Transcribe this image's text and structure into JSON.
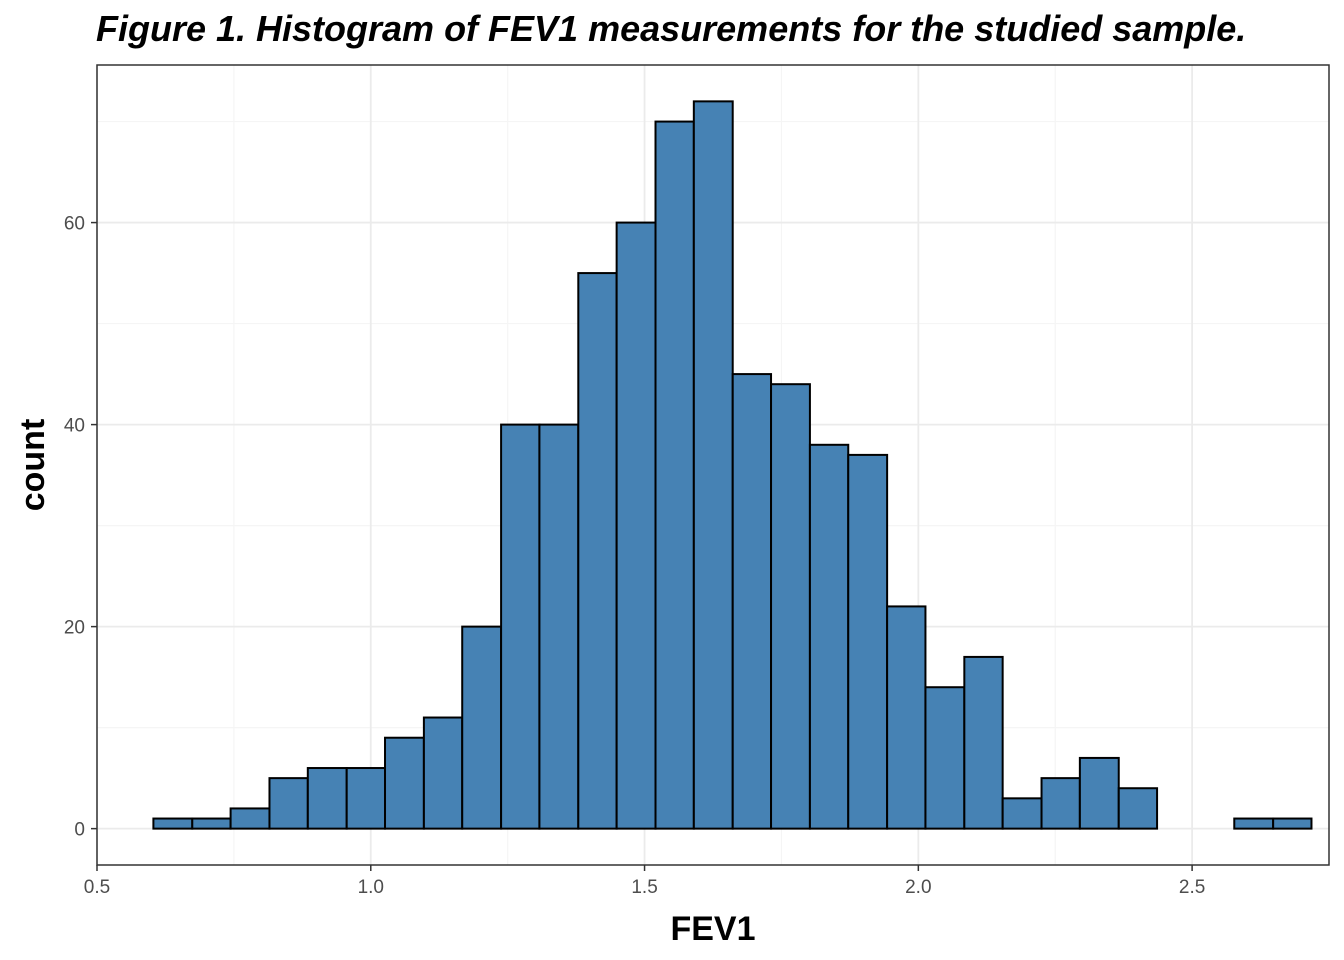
{
  "chart_data": {
    "type": "bar",
    "title": "Figure 1. Histogram of FEV1 measurements for the studied sample.",
    "xlabel": "FEV1",
    "ylabel": "count",
    "xlim": [
      0.5,
      2.75
    ],
    "ylim": [
      -3.6,
      75.6
    ],
    "xticks": [
      0.5,
      1.0,
      1.5,
      2.0,
      2.5
    ],
    "xtick_labels": [
      "0.5",
      "1.0",
      "1.5",
      "2.0",
      "2.5"
    ],
    "yticks": [
      0,
      20,
      40,
      60
    ],
    "ytick_labels": [
      "0",
      "20",
      "40",
      "60"
    ],
    "grid": true,
    "bin_width": 0.0705,
    "bins_start": 0.603,
    "bins": [
      {
        "x_start": 0.603,
        "x_end": 0.674,
        "count": 1
      },
      {
        "x_start": 0.674,
        "x_end": 0.744,
        "count": 1
      },
      {
        "x_start": 0.744,
        "x_end": 0.815,
        "count": 2
      },
      {
        "x_start": 0.815,
        "x_end": 0.885,
        "count": 5
      },
      {
        "x_start": 0.885,
        "x_end": 0.956,
        "count": 6
      },
      {
        "x_start": 0.956,
        "x_end": 1.026,
        "count": 6
      },
      {
        "x_start": 1.026,
        "x_end": 1.097,
        "count": 9
      },
      {
        "x_start": 1.097,
        "x_end": 1.167,
        "count": 11
      },
      {
        "x_start": 1.167,
        "x_end": 1.238,
        "count": 20
      },
      {
        "x_start": 1.238,
        "x_end": 1.308,
        "count": 40
      },
      {
        "x_start": 1.308,
        "x_end": 1.379,
        "count": 40
      },
      {
        "x_start": 1.379,
        "x_end": 1.449,
        "count": 55
      },
      {
        "x_start": 1.449,
        "x_end": 1.52,
        "count": 60
      },
      {
        "x_start": 1.52,
        "x_end": 1.59,
        "count": 70
      },
      {
        "x_start": 1.59,
        "x_end": 1.661,
        "count": 72
      },
      {
        "x_start": 1.661,
        "x_end": 1.731,
        "count": 45
      },
      {
        "x_start": 1.731,
        "x_end": 1.802,
        "count": 44
      },
      {
        "x_start": 1.802,
        "x_end": 1.872,
        "count": 38
      },
      {
        "x_start": 1.872,
        "x_end": 1.943,
        "count": 37
      },
      {
        "x_start": 1.943,
        "x_end": 2.013,
        "count": 22
      },
      {
        "x_start": 2.013,
        "x_end": 2.084,
        "count": 14
      },
      {
        "x_start": 2.084,
        "x_end": 2.154,
        "count": 17
      },
      {
        "x_start": 2.154,
        "x_end": 2.225,
        "count": 3
      },
      {
        "x_start": 2.225,
        "x_end": 2.295,
        "count": 5
      },
      {
        "x_start": 2.295,
        "x_end": 2.366,
        "count": 7
      },
      {
        "x_start": 2.366,
        "x_end": 2.436,
        "count": 4
      },
      {
        "x_start": 2.436,
        "x_end": 2.507,
        "count": 0
      },
      {
        "x_start": 2.507,
        "x_end": 2.577,
        "count": 0
      },
      {
        "x_start": 2.577,
        "x_end": 2.648,
        "count": 1
      },
      {
        "x_start": 2.648,
        "x_end": 2.718,
        "count": 1
      }
    ],
    "colors": {
      "bar_fill": "#4682B4",
      "bar_stroke": "#000000",
      "panel_border": "#333333",
      "grid_major": "#EBEBEB",
      "grid_minor": "#F5F5F5",
      "tick_text": "#4D4D4D"
    }
  }
}
